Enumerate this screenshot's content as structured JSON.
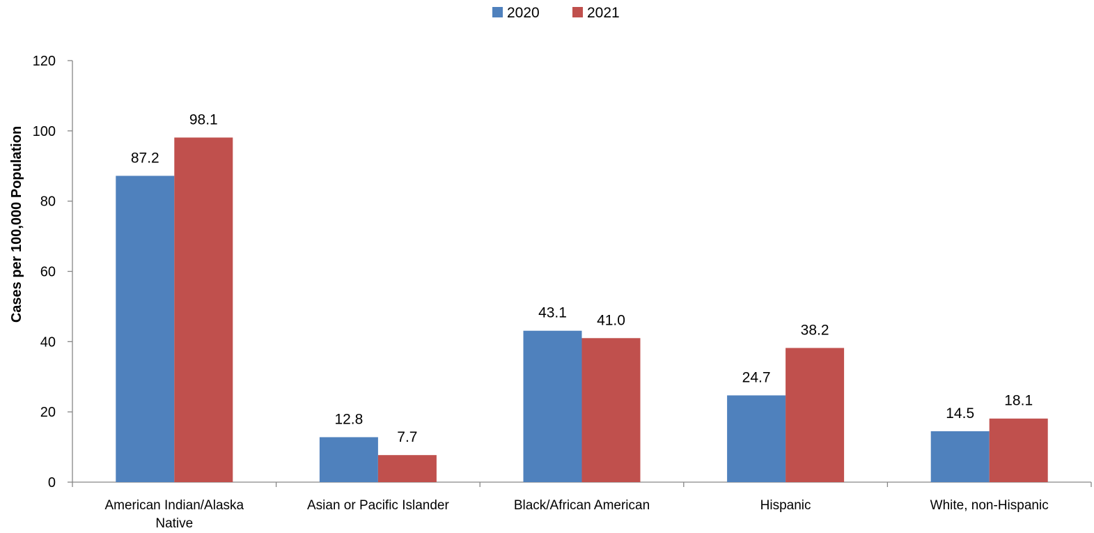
{
  "chart_data": {
    "type": "bar",
    "title": "",
    "xlabel": "",
    "ylabel": "Cases per 100,000 Population",
    "ylim": [
      0,
      120
    ],
    "yticks": [
      0,
      20,
      40,
      60,
      80,
      100,
      120
    ],
    "grid": false,
    "legend_position": "top",
    "categories": [
      [
        "American Indian/Alaska",
        "Native"
      ],
      [
        "Asian or Pacific Islander"
      ],
      [
        "Black/African American"
      ],
      [
        "Hispanic"
      ],
      [
        "White, non-Hispanic"
      ]
    ],
    "series": [
      {
        "name": "2020",
        "color": "#4F81BD",
        "values": [
          87.2,
          12.8,
          43.1,
          24.7,
          14.5
        ],
        "labels": [
          "87.2",
          "12.8",
          "43.1",
          "24.7",
          "14.5"
        ]
      },
      {
        "name": "2021",
        "color": "#C0504D",
        "values": [
          98.1,
          7.7,
          41.0,
          38.2,
          18.1
        ],
        "labels": [
          "98.1",
          "7.7",
          "41.0",
          "38.2",
          "18.1"
        ]
      }
    ]
  }
}
